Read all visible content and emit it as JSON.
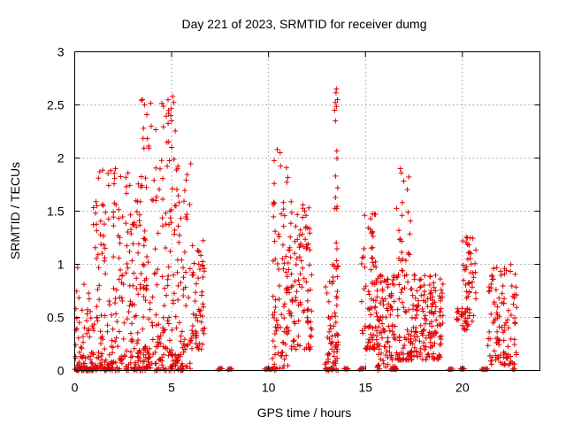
{
  "chart_data": {
    "type": "scatter",
    "title": "Day 221 of 2023, SRMTID for receiver dumg",
    "xlabel": "GPS time / hours",
    "ylabel": "SRMTID / TECUs",
    "xlim": [
      0,
      24
    ],
    "ylim": [
      0,
      3
    ],
    "xticks": [
      0,
      5,
      10,
      15,
      20
    ],
    "yticks": [
      0,
      0.5,
      1,
      1.5,
      2,
      2.5,
      3
    ],
    "grid": true,
    "marker": "+",
    "color": "#e00000",
    "clusters": [
      {
        "x": [
          0.0,
          0.9
        ],
        "y": [
          0.0,
          1.0
        ],
        "n": 70,
        "skew": 2.6
      },
      {
        "x": [
          0.9,
          2.0
        ],
        "y": [
          0.0,
          1.9
        ],
        "n": 110,
        "skew": 2.2
      },
      {
        "x": [
          2.0,
          3.3
        ],
        "y": [
          0.0,
          1.9
        ],
        "n": 130,
        "skew": 1.8
      },
      {
        "x": [
          3.3,
          4.0
        ],
        "y": [
          0.0,
          2.55
        ],
        "n": 90,
        "skew": 2.4
      },
      {
        "x": [
          4.0,
          5.2
        ],
        "y": [
          0.0,
          2.6
        ],
        "n": 130,
        "skew": 2.2
      },
      {
        "x": [
          5.2,
          6.0
        ],
        "y": [
          0.0,
          2.2
        ],
        "n": 80,
        "skew": 2.0
      },
      {
        "x": [
          6.0,
          6.7
        ],
        "y": [
          0.2,
          1.25
        ],
        "n": 60,
        "skew": 1.3
      },
      {
        "x": [
          10.2,
          11.0
        ],
        "y": [
          0.0,
          2.1
        ],
        "n": 80,
        "skew": 1.8
      },
      {
        "x": [
          11.0,
          12.3
        ],
        "y": [
          0.2,
          1.6
        ],
        "n": 110,
        "skew": 1.3
      },
      {
        "x": [
          12.9,
          13.4
        ],
        "y": [
          0.0,
          1.0
        ],
        "n": 40,
        "skew": 1.6
      },
      {
        "x": [
          13.4,
          13.6
        ],
        "y": [
          0.0,
          2.65
        ],
        "n": 45,
        "skew": 1.8
      },
      {
        "x": [
          14.8,
          15.6
        ],
        "y": [
          0.2,
          1.5
        ],
        "n": 80,
        "skew": 2.0
      },
      {
        "x": [
          15.6,
          16.6
        ],
        "y": [
          0.0,
          0.9
        ],
        "n": 100,
        "skew": 1.3
      },
      {
        "x": [
          16.6,
          17.4
        ],
        "y": [
          0.1,
          1.9
        ],
        "n": 90,
        "skew": 2.4
      },
      {
        "x": [
          17.4,
          19.0
        ],
        "y": [
          0.1,
          0.9
        ],
        "n": 150,
        "skew": 1.2
      },
      {
        "x": [
          19.7,
          20.0
        ],
        "y": [
          0.45,
          0.6
        ],
        "n": 12,
        "skew": 1.0
      },
      {
        "x": [
          20.0,
          20.7
        ],
        "y": [
          0.35,
          1.28
        ],
        "n": 60,
        "skew": 1.0
      },
      {
        "x": [
          21.3,
          22.8
        ],
        "y": [
          0.05,
          1.0
        ],
        "n": 110,
        "skew": 1.3
      }
    ],
    "outliers": [
      {
        "x": 3.5,
        "y": 2.55
      },
      {
        "x": 3.6,
        "y": 2.5
      },
      {
        "x": 3.55,
        "y": 2.28
      },
      {
        "x": 5.05,
        "y": 2.58
      },
      {
        "x": 4.95,
        "y": 2.4
      },
      {
        "x": 5.0,
        "y": 2.1
      },
      {
        "x": 13.5,
        "y": 2.65
      },
      {
        "x": 13.55,
        "y": 2.55
      },
      {
        "x": 13.45,
        "y": 2.35
      },
      {
        "x": 16.8,
        "y": 1.9
      },
      {
        "x": 16.85,
        "y": 1.86
      },
      {
        "x": 2.1,
        "y": 1.9
      },
      {
        "x": 10.45,
        "y": 2.08
      },
      {
        "x": 10.6,
        "y": 2.05
      }
    ],
    "zero_baseline": [
      [
        0.0,
        1.0
      ],
      [
        1.5,
        1.8
      ],
      [
        7.4,
        7.6
      ],
      [
        7.9,
        8.1
      ],
      [
        9.8,
        10.4
      ],
      [
        13.0,
        13.3
      ],
      [
        13.9,
        14.1
      ],
      [
        14.7,
        14.9
      ],
      [
        16.3,
        16.6
      ],
      [
        19.3,
        19.5
      ],
      [
        19.9,
        20.1
      ],
      [
        21.0,
        21.3
      ],
      [
        22.6,
        22.7
      ]
    ],
    "data_gaps_hours": [
      [
        6.7,
        10.2
      ],
      [
        14.0,
        14.8
      ]
    ]
  }
}
